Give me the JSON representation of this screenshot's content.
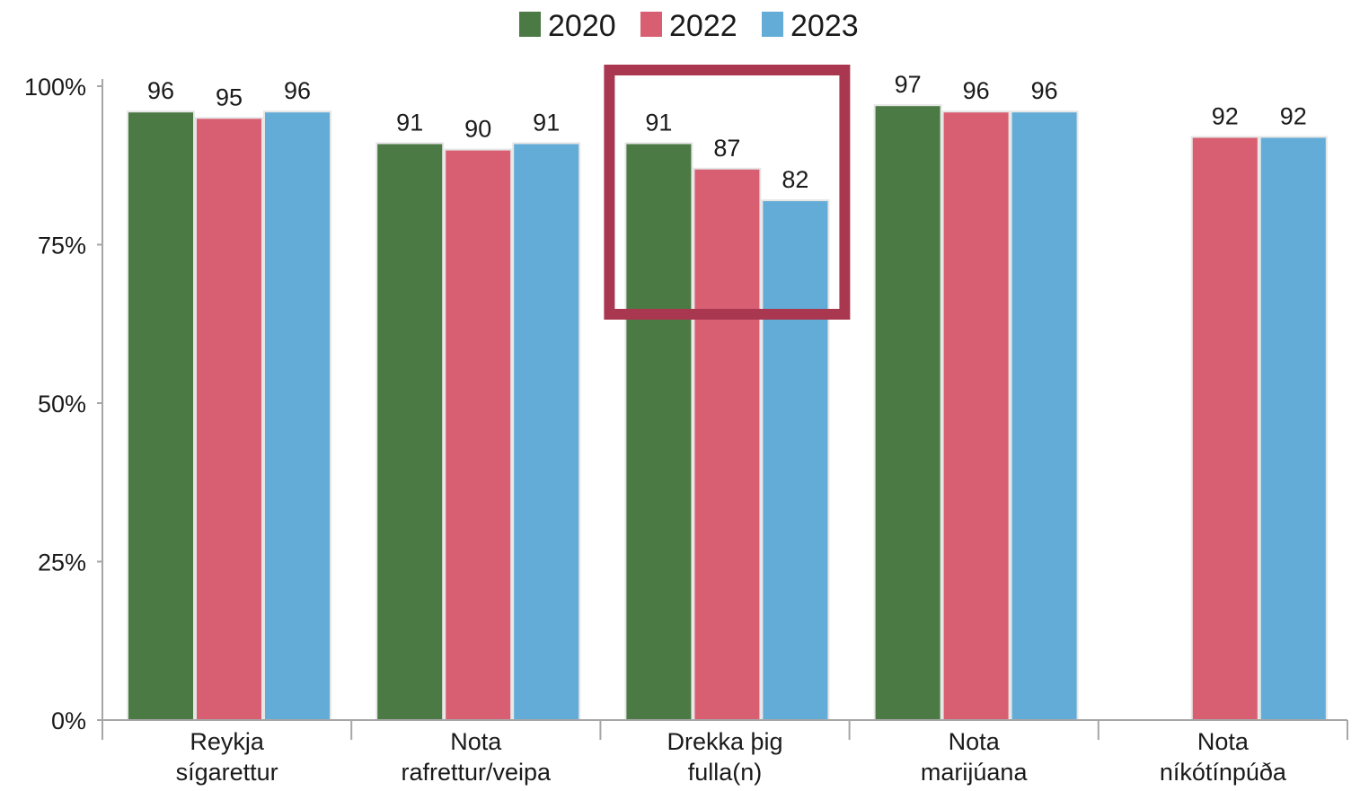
{
  "chart_data": {
    "type": "bar",
    "categories": [
      [
        "Reykja",
        "sígarettur"
      ],
      [
        "Nota",
        "rafrettur/veipa"
      ],
      [
        "Drekka þig",
        "fulla(n)"
      ],
      [
        "Nota",
        "marijúana"
      ],
      [
        "Nota",
        "níkótínpúða"
      ]
    ],
    "series": [
      {
        "name": "2020",
        "color": "#4b7a44",
        "values": [
          96,
          91,
          91,
          97,
          null
        ]
      },
      {
        "name": "2022",
        "color": "#d85f72",
        "values": [
          95,
          90,
          87,
          96,
          92
        ]
      },
      {
        "name": "2023",
        "color": "#62acd7",
        "values": [
          96,
          91,
          82,
          96,
          92
        ]
      }
    ],
    "ylim": [
      0,
      100
    ],
    "yticks": [
      0,
      25,
      50,
      75,
      100
    ],
    "ytick_labels": [
      "0%",
      "25%",
      "50%",
      "75%",
      "100%"
    ],
    "data_labels": true,
    "legend_position": "top-center",
    "grid": false,
    "highlight": {
      "category_index": 2,
      "color": "#a93750"
    },
    "title": "",
    "xlabel": "",
    "ylabel": ""
  }
}
